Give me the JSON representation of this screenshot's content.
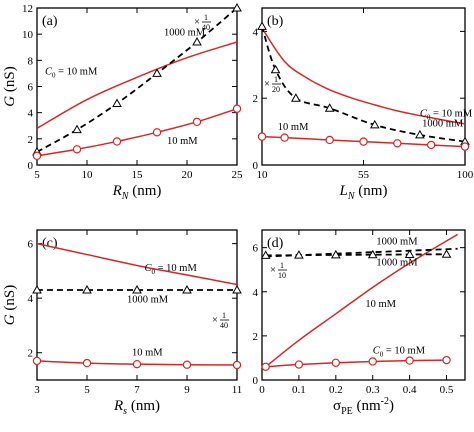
{
  "chart_data": [
    {
      "panel": "(a)",
      "type": "line",
      "xlabel": "R",
      "xlabel_sub": "N",
      "xlabel_unit": " (nm)",
      "ylabel": "G (nS)",
      "xlim": [
        5,
        25
      ],
      "ylim": [
        0,
        12
      ],
      "xticks": [
        5,
        10,
        15,
        20,
        25
      ],
      "yticks": [
        0,
        2,
        4,
        6,
        8,
        10,
        12
      ],
      "series": [
        {
          "name": "C0 = 10 mM",
          "style": "red-solid",
          "x": [
            5,
            10,
            15,
            20,
            25
          ],
          "y": [
            2.8,
            5.0,
            6.7,
            8.2,
            9.4
          ]
        },
        {
          "name": "1000 mM ×1/40",
          "style": "black-dashed-triangle",
          "x": [
            5,
            9,
            13,
            17,
            21,
            25
          ],
          "y": [
            1.0,
            2.7,
            4.7,
            7.0,
            9.4,
            12.0
          ]
        },
        {
          "name": "10 mM",
          "style": "red-circle",
          "x": [
            5,
            9,
            13,
            17,
            21,
            25
          ],
          "y": [
            0.7,
            1.2,
            1.8,
            2.5,
            3.3,
            4.3
          ]
        }
      ],
      "annotations": [
        {
          "text": "C0 = 10 mM",
          "x": 5.8,
          "y": 6.9
        },
        {
          "text": "1000 mM",
          "x": 17.7,
          "y": 9.9
        },
        {
          "text": "10 mM",
          "x": 18.0,
          "y": 1.6
        }
      ]
    },
    {
      "panel": "(b)",
      "type": "line",
      "xlabel": "L",
      "xlabel_sub": "N",
      "xlabel_unit": " (nm)",
      "ylabel": "",
      "xlim": [
        10,
        100
      ],
      "ylim": [
        0,
        4.7
      ],
      "xticks": [
        10,
        55,
        100
      ],
      "yticks": [
        0,
        2,
        4
      ],
      "series": [
        {
          "name": "C0 = 10 mM",
          "style": "red-solid",
          "x": [
            10,
            20,
            30,
            40,
            50,
            60,
            70,
            80,
            90,
            100
          ],
          "y": [
            4.1,
            3.1,
            2.6,
            2.25,
            2.0,
            1.8,
            1.62,
            1.48,
            1.35,
            1.23
          ]
        },
        {
          "name": "1000 mM ×1/20",
          "style": "black-dashed-triangle",
          "x": [
            10,
            16,
            25,
            40,
            60,
            80,
            100
          ],
          "y": [
            4.15,
            2.85,
            2.0,
            1.7,
            1.2,
            0.9,
            0.7
          ]
        },
        {
          "name": "10 mM",
          "style": "red-circle",
          "x": [
            10,
            20,
            40,
            55,
            70,
            85,
            100
          ],
          "y": [
            0.85,
            0.82,
            0.75,
            0.7,
            0.65,
            0.6,
            0.55
          ]
        }
      ],
      "annotations": [
        {
          "text": "C0 = 10 mM",
          "x": 80,
          "y": 1.45
        },
        {
          "text": "1000 mM",
          "x": 81,
          "y": 1.15
        },
        {
          "text": "10 mM",
          "x": 17,
          "y": 1.05
        }
      ]
    },
    {
      "panel": "(c)",
      "type": "line",
      "xlabel": "R",
      "xlabel_sub": "s",
      "xlabel_unit": " (nm)",
      "ylabel": "G (nS)",
      "xlim": [
        3,
        11
      ],
      "ylim": [
        1,
        6.5
      ],
      "xticks": [
        3,
        5,
        7,
        9,
        11
      ],
      "yticks": [
        2,
        4,
        6
      ],
      "series": [
        {
          "name": "C0 = 10 mM",
          "style": "red-solid",
          "x": [
            3,
            5,
            7,
            9,
            11
          ],
          "y": [
            6.0,
            5.6,
            5.2,
            4.85,
            4.5
          ]
        },
        {
          "name": "1000 mM ×1/40",
          "style": "black-dashed-triangle",
          "x": [
            3,
            5,
            7,
            9,
            11
          ],
          "y": [
            4.3,
            4.3,
            4.3,
            4.3,
            4.3
          ]
        },
        {
          "name": "10 mM",
          "style": "red-circle",
          "x": [
            3,
            5,
            7,
            9,
            11
          ],
          "y": [
            1.7,
            1.62,
            1.58,
            1.56,
            1.55
          ]
        }
      ],
      "annotations": [
        {
          "text": "C0 = 10 mM",
          "x": 7.3,
          "y": 5.0
        },
        {
          "text": "1000 mM",
          "x": 6.6,
          "y": 3.85
        },
        {
          "text": "10 mM",
          "x": 6.8,
          "y": 1.9
        }
      ]
    },
    {
      "panel": "(d)",
      "type": "line",
      "xlabel": "σ",
      "xlabel_sub": "PE",
      "xlabel_unit": " (nm",
      "xlabel_sup": "-2",
      "xlabel_close": ")",
      "ylabel": "",
      "xlim": [
        0,
        0.55
      ],
      "ylim": [
        0,
        6.8
      ],
      "xticks": [
        0,
        0.1,
        0.2,
        0.3,
        0.4,
        0.5
      ],
      "yticks": [
        0,
        2,
        4,
        6
      ],
      "series": [
        {
          "name": "10 mM",
          "style": "red-solid",
          "x": [
            0.01,
            0.1,
            0.2,
            0.3,
            0.4,
            0.53
          ],
          "y": [
            0.6,
            1.8,
            3.0,
            4.2,
            5.3,
            6.6
          ]
        },
        {
          "name": "1000 mM upper",
          "style": "black-dashed",
          "x": [
            0.01,
            0.53
          ],
          "y": [
            5.6,
            5.95
          ]
        },
        {
          "name": "1000 mM ×1/10",
          "style": "black-dashed-triangle",
          "x": [
            0.01,
            0.1,
            0.2,
            0.3,
            0.4,
            0.5
          ],
          "y": [
            5.65,
            5.66,
            5.67,
            5.68,
            5.69,
            5.7
          ]
        },
        {
          "name": "C0 = 10 mM",
          "style": "red-circle",
          "x": [
            0.01,
            0.1,
            0.2,
            0.3,
            0.4,
            0.5
          ],
          "y": [
            0.6,
            0.7,
            0.78,
            0.84,
            0.88,
            0.9
          ]
        }
      ],
      "annotations": [
        {
          "text": "1000 mM",
          "x": 0.31,
          "y": 6.15
        },
        {
          "text": "1000 mM",
          "x": 0.31,
          "y": 5.2
        },
        {
          "text": "10 mM",
          "x": 0.28,
          "y": 3.3
        },
        {
          "text": "C0 = 10 mM",
          "x": 0.3,
          "y": 1.2
        }
      ]
    }
  ],
  "labels": {
    "scale_a": {
      "prefix": "×",
      "num": "1",
      "den": "40"
    },
    "scale_b": {
      "prefix": "×",
      "num": "1",
      "den": "20"
    },
    "scale_c": {
      "prefix": "×",
      "num": "1",
      "den": "40"
    },
    "scale_d": {
      "prefix": "×",
      "num": "1",
      "den": "10"
    }
  },
  "colors": {
    "red": "#d62728",
    "black": "#000000"
  }
}
